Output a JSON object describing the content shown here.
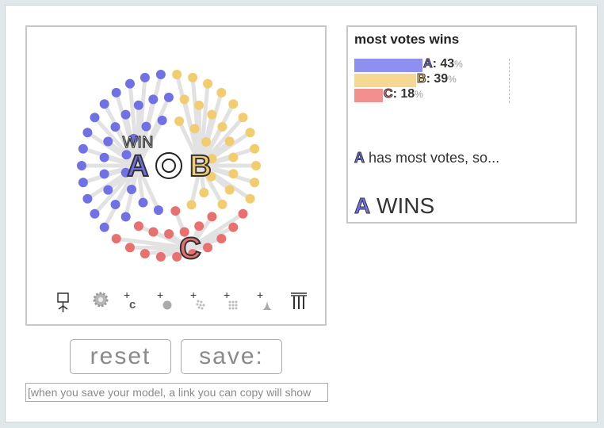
{
  "toolbar": {
    "tools": [
      {
        "name": "voter-tool",
        "icon": "voter-icon"
      },
      {
        "name": "settings-tool",
        "icon": "gear-icon"
      },
      {
        "name": "add-candidate-tool",
        "icon": "add-candidate-icon"
      },
      {
        "name": "add-voter-tool",
        "icon": "add-voter-icon"
      },
      {
        "name": "add-voter-group-tool",
        "icon": "add-voter-group-icon"
      },
      {
        "name": "add-voter-crowd-tool",
        "icon": "add-voter-crowd-icon"
      },
      {
        "name": "add-distribution-tool",
        "icon": "add-distribution-icon"
      },
      {
        "name": "ballot-tool",
        "icon": "columns-icon"
      }
    ]
  },
  "buttons": {
    "reset": "reset",
    "save": "save:"
  },
  "link_box": {
    "text": "[when you save your model, a link you can copy will show"
  },
  "simulation": {
    "win_label": "WIN",
    "candidates": [
      {
        "id": "A",
        "color": "#7171e6"
      },
      {
        "id": "B",
        "color": "#f2cd6f"
      },
      {
        "id": "C",
        "color": "#e8716f"
      }
    ]
  },
  "results": {
    "title": "most votes wins",
    "bars": [
      {
        "candidate": "A",
        "value": 43,
        "unit": "%",
        "color": "#8f8ff2"
      },
      {
        "candidate": "B",
        "value": 39,
        "unit": "%",
        "color": "#f5d992"
      },
      {
        "candidate": "C",
        "value": 18,
        "unit": "%",
        "color": "#f28f8f"
      }
    ],
    "sentence_candidate": "A",
    "sentence_text": " has most votes, so...",
    "winner_candidate": "A",
    "winner_text": " WINS"
  }
}
